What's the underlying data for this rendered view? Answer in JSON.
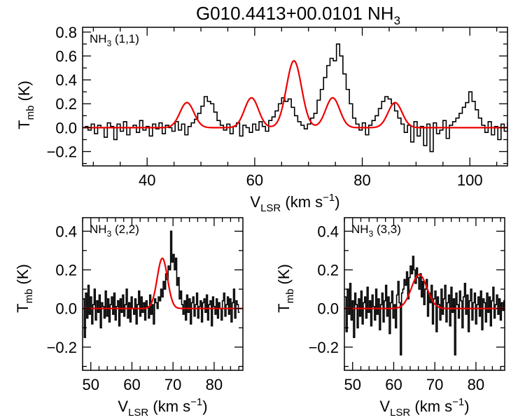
{
  "figure_title": "G010.4413+00.0101 NH",
  "figure_title_sub": "3",
  "colors": {
    "spectrum": "#000000",
    "fit": "#ee0000",
    "axis": "#000000"
  },
  "chart_data": [
    {
      "id": "nh3_11",
      "type": "line",
      "panel_label": "NH",
      "panel_label_sub": "3",
      "panel_label_suffix": " (1,1)",
      "xlabel": "V",
      "xlabel_sub": "LSR",
      "xlabel_suffix": " (km s",
      "xlabel_sup": "−1",
      "xlabel_close": ")",
      "ylabel": "T",
      "ylabel_sub": "mb",
      "ylabel_suffix": " (K)",
      "xlim": [
        28,
        107
      ],
      "ylim": [
        -0.32,
        0.84
      ],
      "xticks": [
        40,
        60,
        80,
        100
      ],
      "xtick_labels": [
        "40",
        "60",
        "80",
        "100"
      ],
      "xminor": 5,
      "yticks": [
        -0.2,
        0.0,
        0.2,
        0.4,
        0.6,
        0.8
      ],
      "ytick_labels": [
        "−0.2",
        "0.0",
        "0.2",
        "0.4",
        "0.6",
        "0.8"
      ],
      "yminor": 0.1,
      "spectrum": {
        "x0": 28.4,
        "dx": 0.6,
        "values": [
          0.01,
          -0.02,
          0.03,
          -0.05,
          0.02,
          0.0,
          -0.08,
          0.04,
          0.01,
          -0.1,
          0.03,
          -0.03,
          0.05,
          -0.06,
          0.0,
          0.02,
          -0.04,
          0.06,
          -0.02,
          0.01,
          -0.07,
          0.03,
          -0.01,
          0.04,
          -0.05,
          0.02,
          0.0,
          -0.03,
          0.05,
          -0.02,
          0.03,
          -0.06,
          0.01,
          0.04,
          0.07,
          0.12,
          0.18,
          0.26,
          0.22,
          0.2,
          0.13,
          0.06,
          0.02,
          -0.02,
          0.03,
          -0.05,
          0.01,
          0.04,
          -0.07,
          0.02,
          0.0,
          -0.04,
          0.03,
          -0.02,
          0.05,
          0.01,
          -0.03,
          0.06,
          0.09,
          0.14,
          0.2,
          0.25,
          0.22,
          0.24,
          0.17,
          0.1,
          0.05,
          0.02,
          -0.01,
          0.03,
          0.08,
          0.12,
          0.23,
          0.32,
          0.42,
          0.52,
          0.58,
          0.56,
          0.7,
          0.6,
          0.45,
          0.32,
          0.2,
          0.08,
          0.03,
          -0.02,
          0.04,
          -0.06,
          0.02,
          0.06,
          0.1,
          0.16,
          0.22,
          0.26,
          0.24,
          0.2,
          0.14,
          0.08,
          0.03,
          -0.04,
          0.02,
          -0.12,
          0.05,
          -0.07,
          0.01,
          -0.15,
          0.03,
          -0.2,
          0.04,
          -0.05,
          -0.02,
          0.06,
          -0.09,
          0.02,
          0.05,
          0.08,
          0.12,
          0.17,
          0.21,
          0.3,
          0.22,
          0.15,
          0.08,
          0.02,
          -0.04,
          0.05,
          -0.06,
          0.01,
          -0.1,
          0.03,
          -0.03,
          0.04,
          -0.02,
          -0.12,
          0.06,
          -0.05,
          0.02,
          -0.08,
          0.03,
          0.0,
          -0.04,
          0.05,
          -0.07,
          0.01,
          0.02,
          -0.03,
          0.04
        ]
      },
      "fit": {
        "x_start": 28.0,
        "x_end": 107.0,
        "components": [
          {
            "amplitude": 0.21,
            "center": 47.4,
            "sigma": 1.3
          },
          {
            "amplitude": 0.25,
            "center": 59.4,
            "sigma": 1.3
          },
          {
            "amplitude": 0.56,
            "center": 67.3,
            "sigma": 1.4
          },
          {
            "amplitude": 0.25,
            "center": 74.5,
            "sigma": 1.3
          },
          {
            "amplitude": 0.21,
            "center": 86.1,
            "sigma": 1.3
          }
        ]
      }
    },
    {
      "id": "nh3_22",
      "type": "line",
      "panel_label": "NH",
      "panel_label_sub": "3",
      "panel_label_suffix": " (2,2)",
      "xlabel": "V",
      "xlabel_sub": "LSR",
      "xlabel_suffix": " (km s",
      "xlabel_sup": "−1",
      "xlabel_close": ")",
      "ylabel": "T",
      "ylabel_sub": "mb",
      "ylabel_suffix": " (K)",
      "xlim": [
        48,
        87
      ],
      "ylim": [
        -0.32,
        0.47
      ],
      "xticks": [
        50,
        60,
        70,
        80
      ],
      "xtick_labels": [
        "50",
        "60",
        "70",
        "80"
      ],
      "xminor": 2,
      "yticks": [
        -0.2,
        0.0,
        0.2,
        0.4
      ],
      "ytick_labels": [
        "−0.2",
        "0.0",
        "0.2",
        "0.4"
      ],
      "yminor": 0.1,
      "spectrum": {
        "x0": 48.1,
        "dx": 0.3,
        "values": [
          0.05,
          -0.15,
          0.08,
          -0.05,
          0.12,
          -0.03,
          0.06,
          -0.08,
          0.02,
          0.1,
          -0.06,
          0.04,
          -0.02,
          0.07,
          -0.1,
          0.03,
          0.01,
          -0.05,
          0.09,
          -0.04,
          0.05,
          -0.07,
          0.02,
          0.06,
          -0.03,
          0.08,
          -0.06,
          0.01,
          0.04,
          -0.09,
          0.05,
          -0.02,
          0.07,
          -0.04,
          0.02,
          0.1,
          -0.05,
          0.03,
          -0.07,
          0.06,
          0.0,
          -0.03,
          0.05,
          -0.08,
          0.02,
          0.09,
          -0.04,
          0.06,
          -0.02,
          0.03,
          -0.06,
          0.04,
          0.01,
          -0.05,
          0.07,
          -0.03,
          0.02,
          -0.08,
          0.05,
          0.03,
          0.0,
          0.06,
          0.04,
          0.1,
          0.06,
          0.14,
          0.1,
          0.18,
          0.15,
          0.22,
          0.2,
          0.4,
          0.24,
          0.28,
          0.2,
          0.26,
          0.12,
          0.16,
          0.05,
          0.09,
          0.02,
          -0.03,
          0.04,
          -0.06,
          0.07,
          -0.02,
          0.05,
          -0.08,
          0.03,
          0.06,
          -0.04,
          0.02,
          0.08,
          -0.05,
          0.01,
          0.04,
          -0.07,
          0.03,
          0.05,
          -0.02,
          0.07,
          -0.06,
          0.02,
          0.04,
          -0.09,
          0.06,
          0.01,
          -0.03,
          0.05,
          -0.05,
          0.03,
          0.0,
          -0.06,
          0.04,
          0.08,
          -0.04,
          0.02,
          0.06,
          -0.03,
          0.05,
          -0.07,
          0.03,
          0.1,
          -0.05,
          0.04,
          0.02,
          -0.02
        ]
      },
      "fit": {
        "x_start": 48.0,
        "x_end": 87.0,
        "components": [
          {
            "amplitude": 0.26,
            "center": 67.4,
            "sigma": 1.25
          }
        ]
      }
    },
    {
      "id": "nh3_33",
      "type": "line",
      "panel_label": "NH",
      "panel_label_sub": "3",
      "panel_label_suffix": " (3,3)",
      "xlabel": "V",
      "xlabel_sub": "LSR",
      "xlabel_suffix": " (km s",
      "xlabel_sup": "−1",
      "xlabel_close": ")",
      "ylabel": "T",
      "ylabel_sub": "mb",
      "ylabel_suffix": " (K)",
      "xlim": [
        48,
        87
      ],
      "ylim": [
        -0.32,
        0.47
      ],
      "xticks": [
        50,
        60,
        70,
        80
      ],
      "xtick_labels": [
        "50",
        "60",
        "70",
        "80"
      ],
      "xminor": 2,
      "yticks": [
        -0.2,
        0.0,
        0.2,
        0.4
      ],
      "ytick_labels": [
        "−0.2",
        "0.0",
        "0.2",
        "0.4"
      ],
      "yminor": 0.1,
      "spectrum": {
        "x0": 48.1,
        "dx": 0.3,
        "values": [
          0.06,
          -0.12,
          0.1,
          -0.03,
          0.13,
          -0.06,
          0.04,
          -0.15,
          0.08,
          0.02,
          -0.1,
          0.05,
          -0.04,
          0.09,
          -0.08,
          0.03,
          0.06,
          -0.05,
          0.11,
          -0.02,
          0.04,
          -0.09,
          0.07,
          0.01,
          -0.06,
          0.1,
          -0.03,
          0.05,
          -0.11,
          0.02,
          0.08,
          -0.07,
          0.04,
          0.12,
          -0.04,
          0.06,
          -0.13,
          0.03,
          0.09,
          -0.05,
          0.02,
          -0.1,
          0.07,
          0.14,
          0.03,
          -0.24,
          0.08,
          0.1,
          0.15,
          0.12,
          0.19,
          0.05,
          0.16,
          0.22,
          0.18,
          0.27,
          0.2,
          0.13,
          0.21,
          0.16,
          0.1,
          0.18,
          0.06,
          0.14,
          0.02,
          0.1,
          0.15,
          -0.04,
          0.08,
          0.03,
          0.12,
          -0.08,
          0.05,
          0.09,
          -0.12,
          0.06,
          0.02,
          -0.06,
          0.1,
          -0.03,
          0.05,
          0.12,
          -0.07,
          0.03,
          0.07,
          -0.09,
          0.11,
          -0.02,
          0.05,
          -0.24,
          0.08,
          0.02,
          -0.05,
          0.09,
          0.04,
          -0.1,
          0.06,
          0.13,
          -0.03,
          0.07,
          -0.12,
          0.04,
          0.1,
          -0.06,
          0.03,
          0.08,
          -0.08,
          0.02,
          0.06,
          -0.04,
          0.09,
          -0.11,
          0.05,
          0.03,
          -0.07,
          0.08,
          -0.02,
          0.06,
          -0.09,
          0.04,
          0.11,
          -0.05,
          0.02,
          0.07,
          -0.03,
          0.05,
          -0.06,
          0.03,
          -0.01,
          0.04
        ]
      },
      "fit": {
        "x_start": 48.0,
        "x_end": 87.0,
        "components": [
          {
            "amplitude": 0.175,
            "center": 66.2,
            "sigma": 1.9
          }
        ]
      }
    }
  ]
}
